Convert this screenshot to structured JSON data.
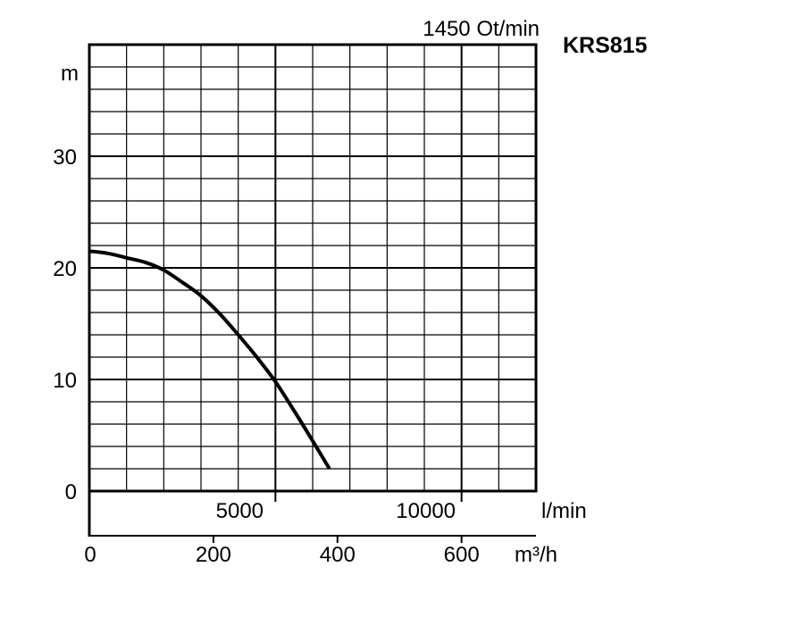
{
  "chart_data": {
    "type": "line",
    "model": "KRS815",
    "speed_label": "1450 Ot/min",
    "y_unit": "m",
    "flow_unit_lpm": "l/min",
    "flow_unit_m3h": "m³/h",
    "ylim": [
      0,
      40
    ],
    "xlim_lpm": [
      0,
      12000
    ],
    "y_ticks": [
      0,
      10,
      20,
      30
    ],
    "x_ticks_lpm": [
      5000,
      10000
    ],
    "x_ticks_m3h": [
      0,
      200,
      400,
      600
    ],
    "grid": true,
    "series": [
      {
        "x": [
          0,
          500,
          1000,
          1500,
          2000,
          2500,
          3000,
          3500,
          4000,
          4500,
          5000,
          5500,
          6000,
          6450
        ],
        "y": [
          21.5,
          21.3,
          20.9,
          20.5,
          19.8,
          18.7,
          17.5,
          15.9,
          14.0,
          12.0,
          9.8,
          7.2,
          4.5,
          2.0
        ]
      }
    ]
  }
}
